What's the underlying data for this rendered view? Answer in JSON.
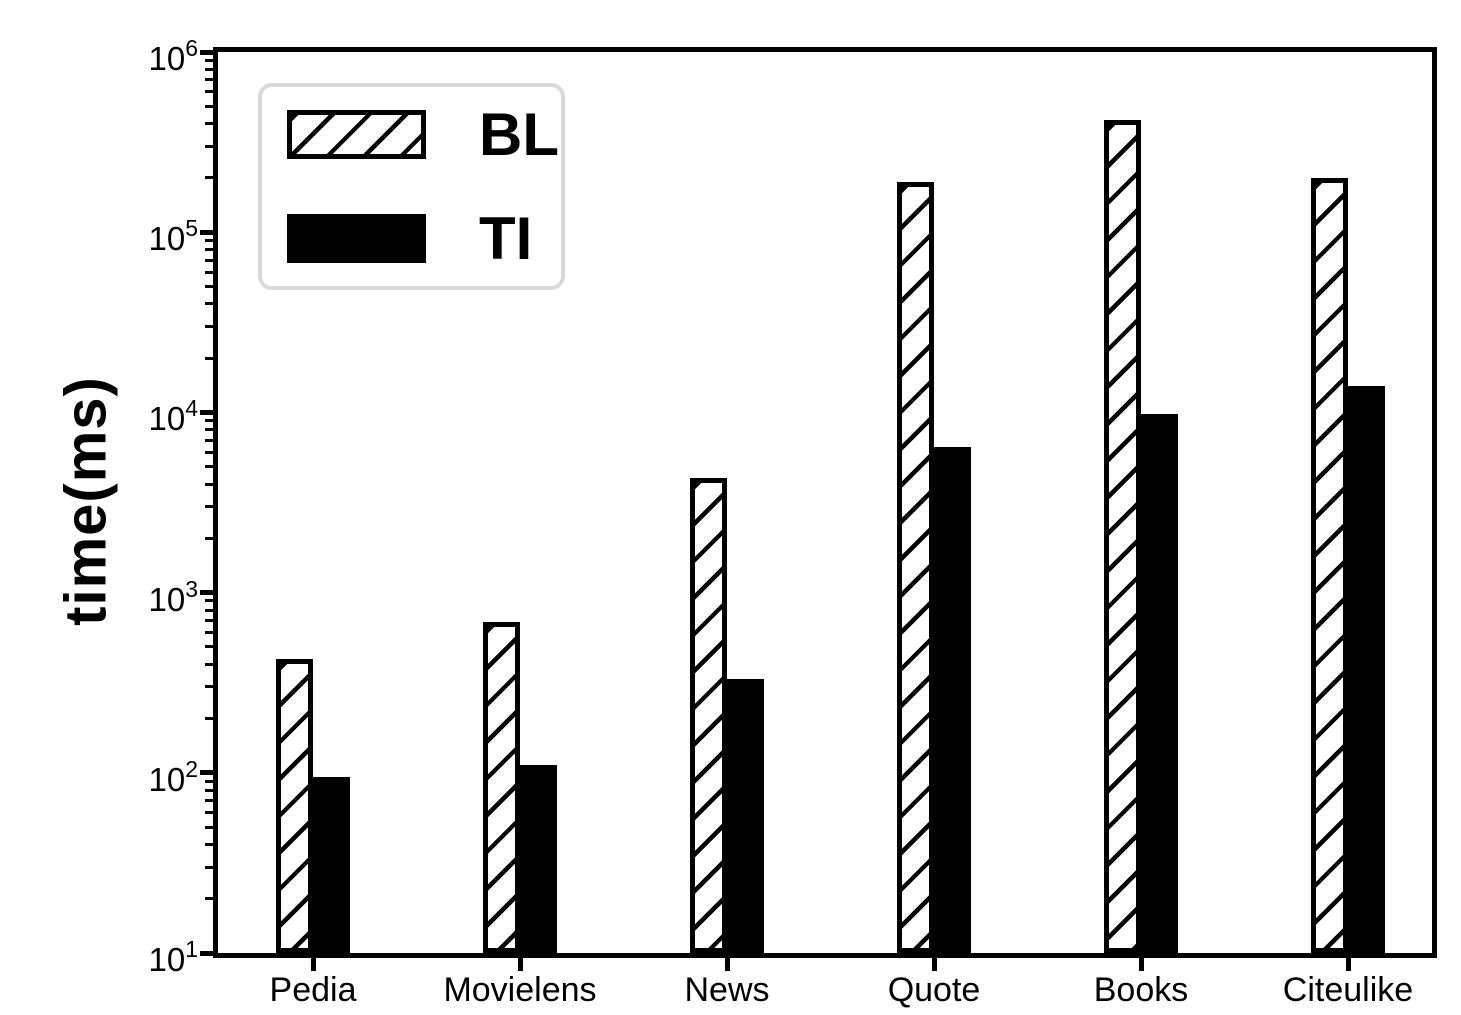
{
  "chart_data": {
    "type": "bar",
    "title": "",
    "xlabel": "",
    "ylabel": "time(ms)",
    "yscale": "log",
    "ylim": [
      10,
      1000000
    ],
    "ytick_base": "10",
    "ytick_exponents": [
      1,
      2,
      3,
      4,
      5,
      6
    ],
    "categories": [
      "Pedia",
      "Movielens",
      "News",
      "Quote",
      "Books",
      "Citeulike"
    ],
    "series": [
      {
        "name": "BL",
        "fill": "hatched",
        "values": [
          430,
          690,
          4300,
          190000,
          420000,
          200000
        ]
      },
      {
        "name": "TI",
        "fill": "solid",
        "values": [
          95,
          110,
          330,
          6400,
          9800,
          14000
        ]
      }
    ],
    "legend_position": "upper-left",
    "grid": false,
    "colors": {
      "foreground": "#000000",
      "background": "#ffffff",
      "bar_outline": "#000000",
      "solid_fill": "#000000",
      "legend_border": "#d9d9d9"
    }
  }
}
